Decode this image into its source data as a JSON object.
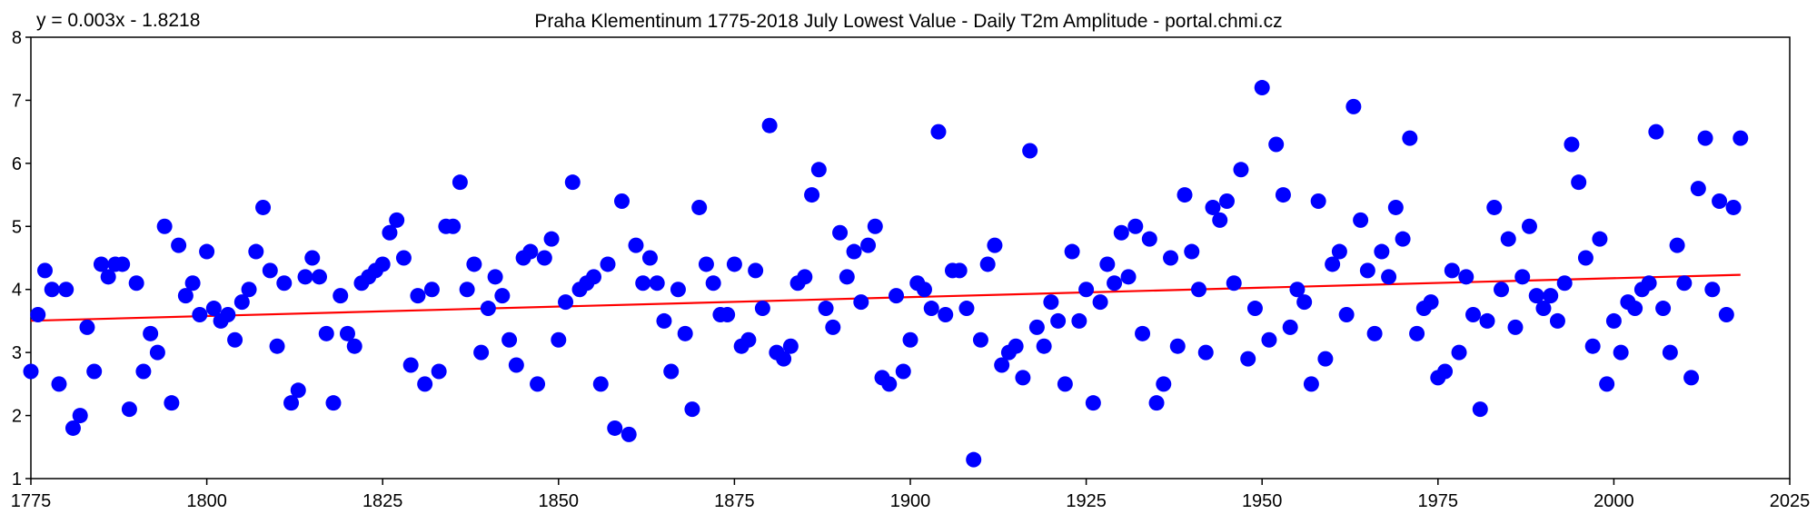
{
  "chart_data": {
    "type": "scatter",
    "title": "Praha Klementinum 1775-2018 July Lowest Value - Daily T2m Amplitude - portal.chmi.cz",
    "trendline_label": "y = 0.003x - 1.8218",
    "trendline": {
      "slope": 0.003,
      "intercept": -1.8218,
      "x_start": 1775,
      "x_end": 2018
    },
    "xlabel": "",
    "ylabel": "",
    "xlim": [
      1775,
      2025
    ],
    "ylim": [
      1,
      8
    ],
    "x_ticks": [
      "1775",
      "1800",
      "1825",
      "1850",
      "1875",
      "1900",
      "1925",
      "1950",
      "1975",
      "2000",
      "2025"
    ],
    "y_ticks": [
      "1",
      "2",
      "3",
      "4",
      "5",
      "6",
      "7",
      "8"
    ],
    "colors": {
      "marker": "#0000ff",
      "trendline": "#ff0000",
      "axis": "#000000",
      "background": "#ffffff"
    },
    "x": [
      1775,
      1776,
      1777,
      1778,
      1779,
      1780,
      1781,
      1782,
      1783,
      1784,
      1785,
      1786,
      1787,
      1788,
      1789,
      1790,
      1791,
      1792,
      1793,
      1794,
      1795,
      1796,
      1797,
      1798,
      1799,
      1800,
      1801,
      1802,
      1803,
      1804,
      1805,
      1806,
      1807,
      1808,
      1809,
      1810,
      1811,
      1812,
      1813,
      1814,
      1815,
      1816,
      1817,
      1818,
      1819,
      1820,
      1821,
      1822,
      1823,
      1824,
      1825,
      1826,
      1827,
      1828,
      1829,
      1830,
      1831,
      1832,
      1833,
      1834,
      1835,
      1836,
      1837,
      1838,
      1839,
      1840,
      1841,
      1842,
      1843,
      1844,
      1845,
      1846,
      1847,
      1848,
      1849,
      1850,
      1851,
      1852,
      1853,
      1854,
      1855,
      1856,
      1857,
      1858,
      1859,
      1860,
      1861,
      1862,
      1863,
      1864,
      1865,
      1866,
      1867,
      1868,
      1869,
      1870,
      1871,
      1872,
      1873,
      1874,
      1875,
      1876,
      1877,
      1878,
      1879,
      1880,
      1881,
      1882,
      1883,
      1884,
      1885,
      1886,
      1887,
      1888,
      1889,
      1890,
      1891,
      1892,
      1893,
      1894,
      1895,
      1896,
      1897,
      1898,
      1899,
      1900,
      1901,
      1902,
      1903,
      1904,
      1905,
      1906,
      1907,
      1908,
      1909,
      1910,
      1911,
      1912,
      1913,
      1914,
      1915,
      1916,
      1917,
      1918,
      1919,
      1920,
      1921,
      1922,
      1923,
      1924,
      1925,
      1926,
      1927,
      1928,
      1929,
      1930,
      1931,
      1932,
      1933,
      1934,
      1935,
      1936,
      1937,
      1938,
      1939,
      1940,
      1941,
      1942,
      1943,
      1944,
      1945,
      1946,
      1947,
      1948,
      1949,
      1950,
      1951,
      1952,
      1953,
      1954,
      1955,
      1956,
      1957,
      1958,
      1959,
      1960,
      1961,
      1962,
      1963,
      1964,
      1965,
      1966,
      1967,
      1968,
      1969,
      1970,
      1971,
      1972,
      1973,
      1974,
      1975,
      1976,
      1977,
      1978,
      1979,
      1980,
      1981,
      1982,
      1983,
      1984,
      1985,
      1986,
      1987,
      1988,
      1989,
      1990,
      1991,
      1992,
      1993,
      1994,
      1995,
      1996,
      1997,
      1998,
      1999,
      2000,
      2001,
      2002,
      2003,
      2004,
      2005,
      2006,
      2007,
      2008,
      2009,
      2010,
      2011,
      2012,
      2013,
      2014,
      2015,
      2016,
      2017,
      2018
    ],
    "y": [
      2.7,
      3.6,
      4.3,
      4.0,
      2.5,
      4.0,
      1.8,
      2.0,
      3.4,
      2.7,
      4.4,
      4.2,
      4.4,
      4.4,
      2.1,
      4.1,
      2.7,
      3.3,
      3.0,
      5.0,
      2.2,
      4.7,
      3.9,
      4.1,
      3.6,
      4.6,
      3.7,
      3.5,
      3.6,
      3.2,
      3.8,
      4.0,
      4.6,
      5.3,
      4.3,
      3.1,
      4.1,
      2.2,
      2.4,
      4.2,
      4.5,
      4.2,
      3.3,
      2.2,
      3.9,
      3.3,
      3.1,
      4.1,
      4.2,
      4.3,
      4.4,
      4.9,
      5.1,
      4.5,
      2.8,
      3.9,
      2.5,
      4.0,
      2.7,
      5.0,
      5.0,
      5.7,
      4.0,
      4.4,
      3.0,
      3.7,
      4.2,
      3.9,
      3.2,
      2.8,
      4.5,
      4.6,
      2.5,
      4.5,
      4.8,
      3.2,
      3.8,
      5.7,
      4.0,
      4.1,
      4.2,
      2.5,
      4.4,
      1.8,
      5.4,
      1.7,
      4.7,
      4.1,
      4.5,
      4.1,
      3.5,
      2.7,
      4.0,
      3.3,
      2.1,
      5.3,
      4.4,
      4.1,
      3.6,
      3.6,
      4.4,
      3.1,
      3.2,
      4.3,
      3.7,
      6.6,
      3.0,
      2.9,
      3.1,
      4.1,
      4.2,
      5.5,
      5.9,
      3.7,
      3.4,
      4.9,
      4.2,
      4.6,
      3.8,
      4.7,
      5.0,
      2.6,
      2.5,
      3.9,
      2.7,
      3.2,
      4.1,
      4.0,
      3.7,
      6.5,
      3.6,
      4.3,
      4.3,
      3.7,
      1.3,
      3.2,
      4.4,
      4.7,
      2.8,
      3.0,
      3.1,
      2.6,
      6.2,
      3.4,
      3.1,
      3.8,
      3.5,
      2.5,
      4.6,
      3.5,
      4.0,
      2.2,
      3.8,
      4.4,
      4.1,
      4.9,
      4.2,
      5.0,
      3.3,
      4.8,
      2.2,
      2.5,
      4.5,
      3.1,
      5.5,
      4.6,
      4.0,
      3.0,
      5.3,
      5.1,
      5.4,
      4.1,
      5.9,
      2.9,
      3.7,
      7.2,
      3.2,
      6.3,
      5.5,
      3.4,
      4.0,
      3.8,
      2.5,
      5.4,
      2.9,
      4.4,
      4.6,
      3.6,
      6.9,
      5.1,
      4.3,
      3.3,
      4.6,
      4.2,
      5.3,
      4.8,
      6.4,
      3.3,
      3.7,
      3.8,
      2.6,
      2.7,
      4.3,
      3.0,
      4.2,
      3.6,
      2.1,
      3.5,
      5.3,
      4.0,
      4.8,
      3.4,
      4.2,
      5.0,
      3.9,
      3.7,
      3.9,
      3.5,
      4.1,
      6.3,
      5.7,
      4.5,
      3.1,
      4.8,
      2.5,
      3.5,
      3.0,
      3.8,
      3.7,
      4.0,
      4.1,
      6.5,
      3.7,
      3.0,
      4.7,
      4.1,
      2.6,
      5.6,
      6.4,
      4.0,
      5.4,
      3.6,
      5.3,
      6.4
    ]
  }
}
